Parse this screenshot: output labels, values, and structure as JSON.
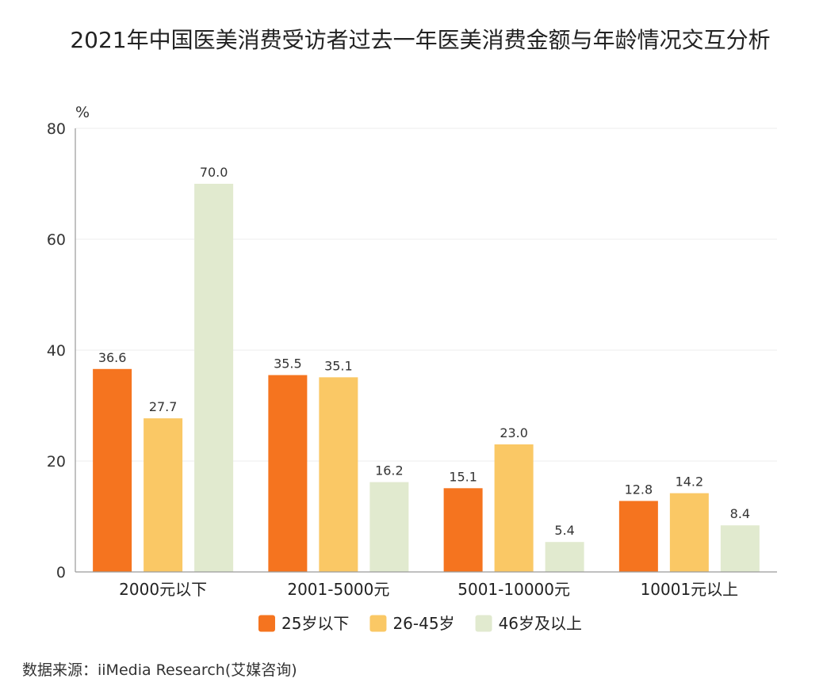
{
  "chart_data": {
    "type": "bar",
    "title": "2021年中国医美消费受访者过去一年医美消费金额与年龄情况交互分析",
    "ylabel": "%",
    "xlabel": "",
    "ylim": [
      0,
      80
    ],
    "yticks": [
      "0",
      "20",
      "40",
      "60",
      "80"
    ],
    "ytick_values": [
      0,
      20,
      40,
      60,
      80
    ],
    "categories": [
      "2000元以下",
      "2001-5000元",
      "5001-10000元",
      "10001元以上"
    ],
    "series": [
      {
        "name": "25岁以下",
        "color": "#F5741F",
        "values": [
          36.6,
          35.5,
          15.1,
          12.8
        ],
        "labels": [
          "36.6",
          "35.5",
          "15.1",
          "12.8"
        ]
      },
      {
        "name": "26-45岁",
        "color": "#FAC865",
        "values": [
          27.7,
          35.1,
          23.0,
          14.2
        ],
        "labels": [
          "27.7",
          "35.1",
          "23.0",
          "14.2"
        ]
      },
      {
        "name": "46岁及以上",
        "color": "#E1EACF",
        "values": [
          70.0,
          16.2,
          5.4,
          8.4
        ],
        "labels": [
          "70.0",
          "16.2",
          "5.4",
          "8.4"
        ]
      }
    ],
    "legend_position": "bottom",
    "grid": true
  },
  "source_text": "数据来源：iiMedia Research(艾媒咨询)"
}
